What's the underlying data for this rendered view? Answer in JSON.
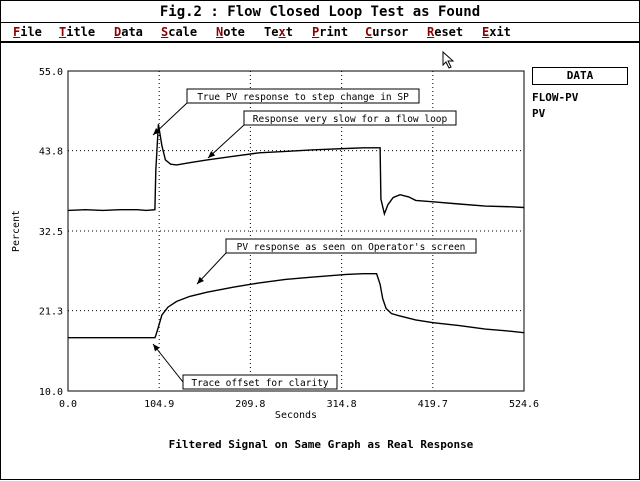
{
  "window": {
    "title": "Fig.2 : Flow Closed Loop Test as Found"
  },
  "menu": [
    {
      "hot": "F",
      "rest": "ile"
    },
    {
      "hot": "T",
      "rest": "itle"
    },
    {
      "hot": "D",
      "rest": "ata"
    },
    {
      "hot": "S",
      "rest": "cale"
    },
    {
      "hot": "N",
      "rest": "ote"
    },
    {
      "hot": "",
      "rest": "Te",
      "hot2": "x",
      "rest2": "t"
    },
    {
      "hot": "P",
      "rest": "rint"
    },
    {
      "hot": "C",
      "rest": "ursor"
    },
    {
      "hot": "R",
      "rest": "eset"
    },
    {
      "hot": "E",
      "rest": "xit"
    }
  ],
  "side_panel": {
    "button_label": "DATA",
    "legend": [
      "FLOW-PV",
      "PV"
    ]
  },
  "footer": {
    "caption": "Filtered Signal on Same Graph as Real Response"
  },
  "chart_data": {
    "type": "line",
    "xlabel": "Seconds",
    "ylabel": "Percent",
    "xlim": [
      0.0,
      524.6
    ],
    "ylim": [
      10.0,
      55.0
    ],
    "x_ticks": [
      "0.0",
      "104.9",
      "209.8",
      "314.8",
      "419.7",
      "524.6"
    ],
    "y_ticks": [
      "10.0",
      "21.3",
      "32.5",
      "43.8",
      "55.0"
    ],
    "grid": "dotted",
    "legend_placement": "right",
    "series": [
      {
        "name": "FLOW-PV",
        "x": [
          0,
          20,
          40,
          60,
          80,
          90,
          100,
          101,
          104,
          108,
          112,
          118,
          125,
          140,
          160,
          190,
          220,
          250,
          280,
          300,
          320,
          340,
          359,
          360,
          364,
          368,
          374,
          382,
          392,
          400,
          420,
          450,
          480,
          510,
          524.6
        ],
        "y": [
          35.4,
          35.5,
          35.4,
          35.5,
          35.5,
          35.4,
          35.5,
          41,
          47.5,
          44.5,
          42.5,
          41.9,
          41.8,
          42.1,
          42.5,
          43.0,
          43.5,
          43.7,
          43.9,
          44.0,
          44.1,
          44.2,
          44.2,
          37,
          34.9,
          36.2,
          37.2,
          37.6,
          37.3,
          36.8,
          36.6,
          36.3,
          36.0,
          35.9,
          35.8
        ]
      },
      {
        "name": "PV",
        "x": [
          0,
          20,
          40,
          60,
          80,
          100,
          101,
          104,
          108,
          115,
          125,
          140,
          160,
          190,
          220,
          250,
          280,
          300,
          320,
          340,
          355,
          359,
          362,
          366,
          372,
          380,
          400,
          420,
          450,
          480,
          510,
          524.6
        ],
        "y": [
          17.5,
          17.5,
          17.5,
          17.5,
          17.5,
          17.5,
          17.8,
          19.0,
          20.7,
          21.8,
          22.6,
          23.3,
          23.9,
          24.6,
          25.2,
          25.7,
          26.0,
          26.2,
          26.4,
          26.5,
          26.5,
          25.0,
          23.0,
          21.6,
          20.9,
          20.6,
          20.0,
          19.6,
          19.2,
          18.7,
          18.4,
          18.2
        ]
      }
    ],
    "annotations": [
      {
        "text": "True PV response to step change in SP",
        "x": 104.9,
        "y": 47.0
      },
      {
        "text": "Response very slow for a flow loop",
        "x": 180,
        "y": 42.6
      },
      {
        "text": "PV response as seen on Operator's screen",
        "x": 160,
        "y": 24.0
      },
      {
        "text": "Trace offset for clarity",
        "x": 104.9,
        "y": 17.5
      }
    ]
  }
}
